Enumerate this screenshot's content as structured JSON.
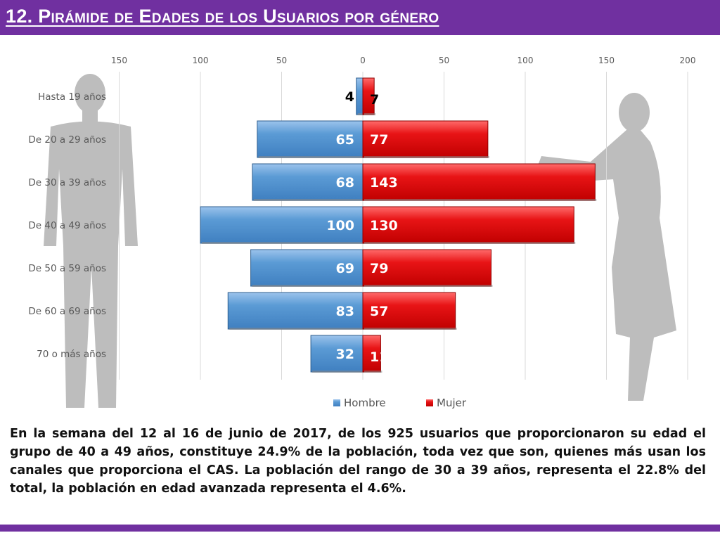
{
  "title": "12. Pirámide de Edades de los Usuarios por género",
  "chart_data": {
    "type": "bar",
    "orientation": "horizontal-diverging",
    "categories": [
      "Hasta 19 años",
      "De 20 a 29 años",
      "De 30 a 39 años",
      "De 40 a 49 años",
      "De 50 a 59 años",
      "De 60 a 69 años",
      "70 o más años"
    ],
    "series": [
      {
        "name": "Hombre",
        "values": [
          4,
          65,
          68,
          100,
          69,
          83,
          32
        ],
        "color": "#5b9bd5"
      },
      {
        "name": "Mujer",
        "values": [
          7,
          77,
          143,
          130,
          79,
          57,
          11
        ],
        "color": "#e81416"
      }
    ],
    "xticks": [
      "150",
      "100",
      "50",
      "0",
      "50",
      "100",
      "150",
      "200"
    ],
    "xlim": [
      -150,
      200
    ],
    "grid": true,
    "legend": "bottom"
  },
  "description": "En la semana del 12 al 16 de junio de 2017, de los 925 usuarios  que proporcionaron su edad el grupo de 40 a 49 años, constituye 24.9% de la población, toda vez que son, quienes más usan los canales que proporciona el CAS. La población del rango de 30 a 39 años, representa el 22.8% del total, la población en edad avanzada representa el 4.6%.",
  "colors": {
    "accent": "#7030a0",
    "hombre": "#5b9bd5",
    "mujer": "#e81416",
    "silhouette": "#bdbdbd"
  }
}
